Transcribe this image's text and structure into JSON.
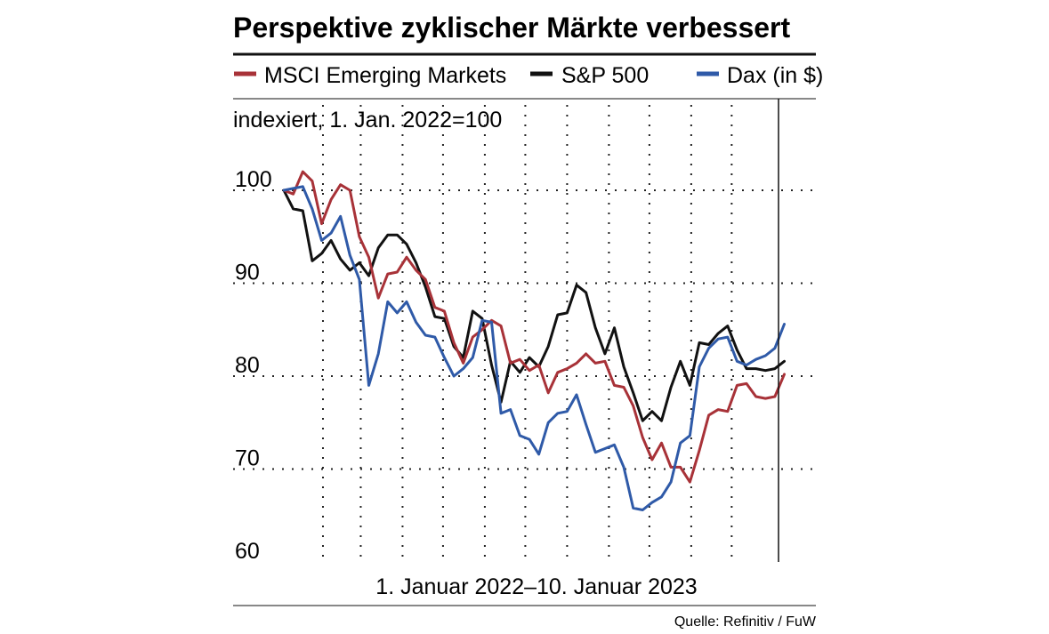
{
  "title": "Perspektive zyklischer Märkte verbessert",
  "subtitle": "indexiert, 1. Jan. 2022=100",
  "xlabel": "1. Januar 2022–10. Januar 2023",
  "source": "Quelle: Refinitiv / FuW",
  "colors": {
    "msci": "#a83238",
    "sp500": "#111111",
    "dax": "#2f5aa8",
    "grid": "#222222"
  },
  "chart_data": {
    "type": "line",
    "ylim": [
      60,
      102
    ],
    "yticks": [
      100,
      90,
      80,
      70,
      60
    ],
    "grid": "dotted",
    "legend_position": "top",
    "x_start": "2022-01-01",
    "x_end": "2023-01-10",
    "series": [
      {
        "name": "MSCI Emerging Markets",
        "x": [
          "2022-01-03",
          "2022-01-10",
          "2022-01-17",
          "2022-01-24",
          "2022-01-31",
          "2022-02-07",
          "2022-02-14",
          "2022-02-21",
          "2022-02-28",
          "2022-03-07",
          "2022-03-14",
          "2022-03-21",
          "2022-03-28",
          "2022-04-04",
          "2022-04-11",
          "2022-04-18",
          "2022-04-25",
          "2022-05-02",
          "2022-05-09",
          "2022-05-16",
          "2022-05-23",
          "2022-05-30",
          "2022-06-06",
          "2022-06-13",
          "2022-06-20",
          "2022-06-27",
          "2022-07-04",
          "2022-07-11",
          "2022-07-18",
          "2022-07-25",
          "2022-08-01",
          "2022-08-08",
          "2022-08-15",
          "2022-08-22",
          "2022-08-29",
          "2022-09-05",
          "2022-09-12",
          "2022-09-19",
          "2022-09-26",
          "2022-10-03",
          "2022-10-10",
          "2022-10-17",
          "2022-10-24",
          "2022-10-31",
          "2022-11-07",
          "2022-11-14",
          "2022-11-21",
          "2022-11-28",
          "2022-12-05",
          "2022-12-12",
          "2022-12-19",
          "2022-12-26",
          "2023-01-02",
          "2023-01-09"
        ],
        "values": [
          100.0,
          99.6,
          102.0,
          101.0,
          96.4,
          99.0,
          100.6,
          100.0,
          95.0,
          92.8,
          88.4,
          91.0,
          91.2,
          92.8,
          91.4,
          90.4,
          87.4,
          87.0,
          83.6,
          81.4,
          84.2,
          85.0,
          86.0,
          85.4,
          81.4,
          81.8,
          80.6,
          81.2,
          78.2,
          80.4,
          80.8,
          81.4,
          82.4,
          81.4,
          81.6,
          79.0,
          78.8,
          76.8,
          73.4,
          71.0,
          72.8,
          70.2,
          70.2,
          68.6,
          72.0,
          75.8,
          76.4,
          76.2,
          79.0,
          79.2,
          77.8,
          77.6,
          77.8,
          80.2
        ]
      },
      {
        "name": "S&P 500",
        "x": [
          "2022-01-03",
          "2022-01-10",
          "2022-01-17",
          "2022-01-24",
          "2022-01-31",
          "2022-02-07",
          "2022-02-14",
          "2022-02-21",
          "2022-02-28",
          "2022-03-07",
          "2022-03-14",
          "2022-03-21",
          "2022-03-28",
          "2022-04-04",
          "2022-04-11",
          "2022-04-18",
          "2022-04-25",
          "2022-05-02",
          "2022-05-09",
          "2022-05-16",
          "2022-05-23",
          "2022-05-30",
          "2022-06-06",
          "2022-06-13",
          "2022-06-20",
          "2022-06-27",
          "2022-07-04",
          "2022-07-11",
          "2022-07-18",
          "2022-07-25",
          "2022-08-01",
          "2022-08-08",
          "2022-08-15",
          "2022-08-22",
          "2022-08-29",
          "2022-09-05",
          "2022-09-12",
          "2022-09-19",
          "2022-09-26",
          "2022-10-03",
          "2022-10-10",
          "2022-10-17",
          "2022-10-24",
          "2022-10-31",
          "2022-11-07",
          "2022-11-14",
          "2022-11-21",
          "2022-11-28",
          "2022-12-05",
          "2022-12-12",
          "2022-12-19",
          "2022-12-26",
          "2023-01-02",
          "2023-01-09"
        ],
        "values": [
          100.0,
          98.0,
          97.8,
          92.4,
          93.2,
          94.6,
          92.6,
          91.4,
          92.2,
          90.8,
          93.8,
          95.2,
          95.2,
          94.2,
          92.2,
          89.6,
          86.4,
          86.2,
          83.2,
          82.0,
          87.0,
          86.2,
          81.2,
          77.2,
          81.6,
          80.4,
          82.0,
          81.0,
          83.2,
          86.6,
          86.8,
          89.8,
          89.0,
          85.2,
          82.4,
          85.2,
          81.0,
          78.2,
          75.2,
          76.2,
          75.2,
          78.8,
          81.6,
          79.0,
          83.6,
          83.4,
          84.6,
          85.4,
          82.8,
          80.8,
          80.8,
          80.6,
          80.8,
          81.6
        ]
      },
      {
        "name": "Dax (in $)",
        "x": [
          "2022-01-03",
          "2022-01-10",
          "2022-01-17",
          "2022-01-24",
          "2022-01-31",
          "2022-02-07",
          "2022-02-14",
          "2022-02-21",
          "2022-02-28",
          "2022-03-07",
          "2022-03-14",
          "2022-03-21",
          "2022-03-28",
          "2022-04-04",
          "2022-04-11",
          "2022-04-18",
          "2022-04-25",
          "2022-05-02",
          "2022-05-09",
          "2022-05-16",
          "2022-05-23",
          "2022-05-30",
          "2022-06-06",
          "2022-06-13",
          "2022-06-20",
          "2022-06-27",
          "2022-07-04",
          "2022-07-11",
          "2022-07-18",
          "2022-07-25",
          "2022-08-01",
          "2022-08-08",
          "2022-08-15",
          "2022-08-22",
          "2022-08-29",
          "2022-09-05",
          "2022-09-12",
          "2022-09-19",
          "2022-09-26",
          "2022-10-03",
          "2022-10-10",
          "2022-10-17",
          "2022-10-24",
          "2022-10-31",
          "2022-11-07",
          "2022-11-14",
          "2022-11-21",
          "2022-11-28",
          "2022-12-05",
          "2022-12-12",
          "2022-12-19",
          "2022-12-26",
          "2023-01-02",
          "2023-01-09"
        ],
        "values": [
          100.0,
          100.2,
          100.4,
          98.0,
          94.6,
          95.4,
          97.2,
          93.0,
          90.4,
          79.0,
          82.4,
          88.0,
          86.8,
          88.0,
          85.8,
          84.4,
          84.2,
          82.0,
          80.0,
          80.8,
          82.0,
          86.0,
          85.8,
          76.0,
          76.4,
          73.6,
          73.2,
          71.6,
          75.0,
          76.0,
          76.2,
          78.0,
          74.8,
          71.8,
          72.2,
          72.6,
          70.2,
          65.8,
          65.6,
          66.4,
          67.0,
          68.6,
          72.8,
          73.6,
          81.0,
          83.0,
          84.0,
          84.2,
          81.6,
          81.2,
          81.8,
          82.2,
          83.0,
          85.6
        ]
      }
    ]
  }
}
